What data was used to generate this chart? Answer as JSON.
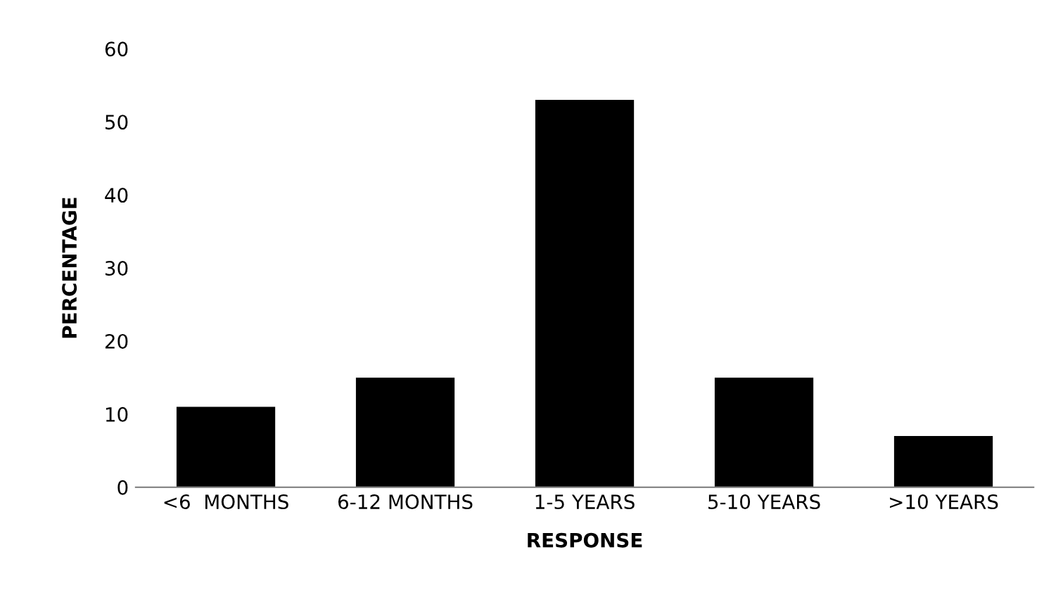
{
  "chart_data": {
    "type": "bar",
    "xlabel": "RESPONSE",
    "ylabel": "PERCENTAGE",
    "categories": [
      "<6  MONTHS",
      "6-12 MONTHS",
      "1-5 YEARS",
      "5-10 YEARS",
      ">10 YEARS"
    ],
    "values": [
      11,
      15,
      53,
      15,
      7
    ],
    "color": "#000000",
    "ylim": [
      0,
      60
    ],
    "yticks": [
      0,
      10,
      20,
      30,
      40,
      50,
      60
    ],
    "grid": false,
    "legend": false
  }
}
